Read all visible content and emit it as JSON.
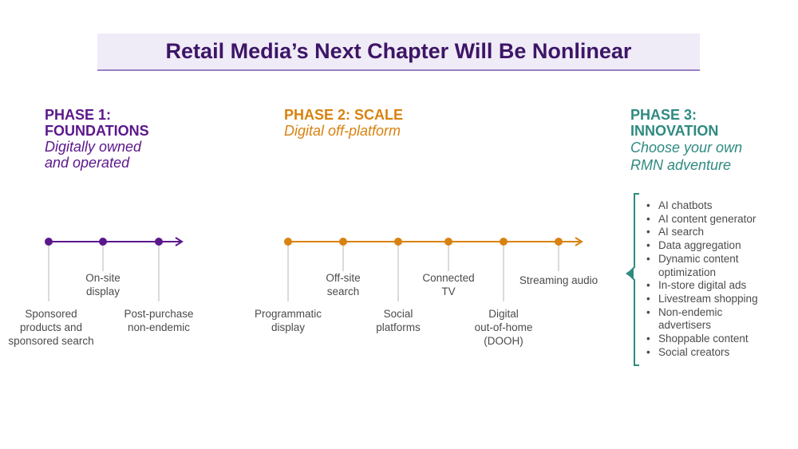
{
  "title": "Retail Media’s Next Chapter Will Be Nonlinear",
  "phase1": {
    "heading": [
      "PHASE 1:",
      "FOUNDATIONS"
    ],
    "subtitle": [
      "Digitally owned",
      "and operated"
    ],
    "milestones": [
      {
        "lines": [
          "Sponsored",
          "products and",
          "sponsored search"
        ]
      },
      {
        "lines": [
          "On-site",
          "display"
        ]
      },
      {
        "lines": [
          "Post-purchase",
          "non-endemic"
        ]
      }
    ]
  },
  "phase2": {
    "heading": [
      "PHASE 2: SCALE"
    ],
    "subtitle": [
      "Digital off-platform"
    ],
    "milestones": [
      {
        "lines": [
          "Programmatic",
          "display"
        ]
      },
      {
        "lines": [
          "Off-site",
          "search"
        ]
      },
      {
        "lines": [
          "Social",
          "platforms"
        ]
      },
      {
        "lines": [
          "Connected",
          "TV"
        ]
      },
      {
        "lines": [
          "Digital",
          "out-of-home",
          "(DOOH)"
        ]
      },
      {
        "lines": [
          "Streaming audio"
        ]
      }
    ]
  },
  "phase3": {
    "heading": [
      "PHASE 3:",
      "INNOVATION"
    ],
    "subtitle": [
      "Choose your own",
      "RMN adventure"
    ],
    "items": [
      [
        "AI chatbots"
      ],
      [
        "AI content generator"
      ],
      [
        "AI search"
      ],
      [
        "Data aggregation"
      ],
      [
        "Dynamic content",
        "optimization"
      ],
      [
        "In-store digital ads"
      ],
      [
        "Livestream shopping"
      ],
      [
        "Non-endemic",
        "advertisers"
      ],
      [
        "Shoppable content"
      ],
      [
        "Social creators"
      ]
    ]
  },
  "colors": {
    "phase1": "#5b178c",
    "phase2": "#d9820f",
    "phase3": "#2f8a80",
    "tick": "#cfcfcf"
  }
}
